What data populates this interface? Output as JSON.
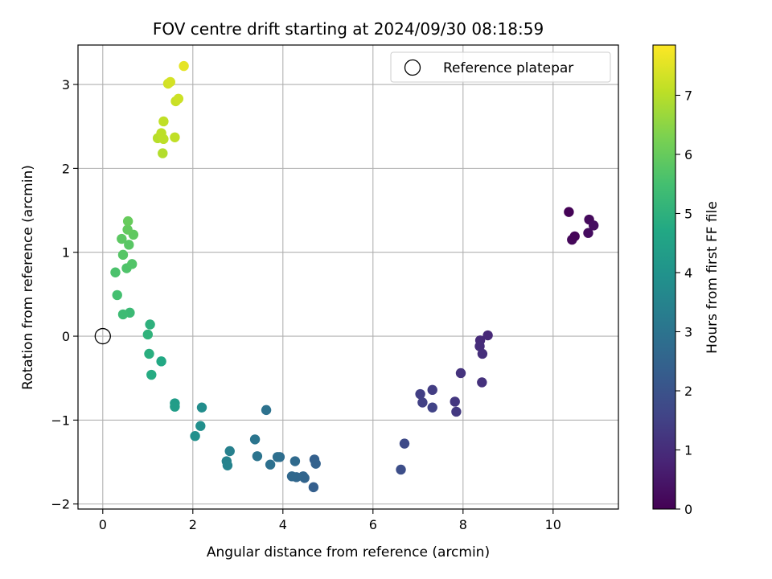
{
  "chart_data": {
    "type": "scatter",
    "title": "FOV centre drift starting at 2024/09/30 08:18:59",
    "xlabel": "Angular distance from reference (arcmin)",
    "ylabel": "Rotation from reference (arcmin)",
    "xlim": [
      -0.55,
      11.45
    ],
    "ylim": [
      -2.06,
      3.47
    ],
    "xticks": [
      0,
      2,
      4,
      6,
      8,
      10
    ],
    "yticks": [
      -2,
      -1,
      0,
      1,
      2,
      3
    ],
    "grid": true,
    "legend": {
      "placement": "upper-right",
      "entries": [
        "Reference platepar"
      ]
    },
    "reference_point": {
      "name": "Reference platepar",
      "x": 0,
      "y": 0
    },
    "colorbar": {
      "label": "Hours from first FF file",
      "colormap": "viridis",
      "range": [
        0,
        7.85
      ],
      "ticks": [
        0,
        1,
        2,
        3,
        4,
        5,
        6,
        7
      ]
    },
    "series": [
      {
        "points": [
          {
            "x": 10.35,
            "y": 1.48,
            "c": 0.05
          },
          {
            "x": 10.42,
            "y": 1.15,
            "c": 0.15
          },
          {
            "x": 10.48,
            "y": 1.19,
            "c": 0.1
          },
          {
            "x": 10.8,
            "y": 1.39,
            "c": 0.2
          },
          {
            "x": 10.78,
            "y": 1.23,
            "c": 0.25
          },
          {
            "x": 10.9,
            "y": 1.32,
            "c": 0.3
          },
          {
            "x": 8.55,
            "y": 0.01,
            "c": 0.9
          },
          {
            "x": 8.38,
            "y": -0.05,
            "c": 0.95
          },
          {
            "x": 8.37,
            "y": -0.12,
            "c": 1.0
          },
          {
            "x": 8.43,
            "y": -0.21,
            "c": 1.05
          },
          {
            "x": 8.42,
            "y": -0.55,
            "c": 1.1
          },
          {
            "x": 7.95,
            "y": -0.44,
            "c": 1.15
          },
          {
            "x": 7.82,
            "y": -0.78,
            "c": 1.25
          },
          {
            "x": 7.85,
            "y": -0.9,
            "c": 1.3
          },
          {
            "x": 7.32,
            "y": -0.64,
            "c": 1.4
          },
          {
            "x": 7.05,
            "y": -0.69,
            "c": 1.45
          },
          {
            "x": 7.1,
            "y": -0.79,
            "c": 1.5
          },
          {
            "x": 7.32,
            "y": -0.85,
            "c": 1.55
          },
          {
            "x": 6.7,
            "y": -1.28,
            "c": 1.75
          },
          {
            "x": 6.62,
            "y": -1.59,
            "c": 1.85
          },
          {
            "x": 4.68,
            "y": -1.8,
            "c": 2.35
          },
          {
            "x": 4.7,
            "y": -1.47,
            "c": 2.4
          },
          {
            "x": 4.73,
            "y": -1.52,
            "c": 2.45
          },
          {
            "x": 4.48,
            "y": -1.69,
            "c": 2.5
          },
          {
            "x": 4.45,
            "y": -1.67,
            "c": 2.55
          },
          {
            "x": 4.3,
            "y": -1.68,
            "c": 2.6
          },
          {
            "x": 4.2,
            "y": -1.67,
            "c": 2.65
          },
          {
            "x": 4.27,
            "y": -1.49,
            "c": 2.7
          },
          {
            "x": 3.93,
            "y": -1.44,
            "c": 2.8
          },
          {
            "x": 3.88,
            "y": -1.44,
            "c": 2.85
          },
          {
            "x": 3.72,
            "y": -1.53,
            "c": 2.9
          },
          {
            "x": 3.63,
            "y": -0.88,
            "c": 2.95
          },
          {
            "x": 3.43,
            "y": -1.43,
            "c": 3.0
          },
          {
            "x": 3.38,
            "y": -1.23,
            "c": 3.05
          },
          {
            "x": 2.82,
            "y": -1.37,
            "c": 3.4
          },
          {
            "x": 2.75,
            "y": -1.49,
            "c": 3.45
          },
          {
            "x": 2.77,
            "y": -1.54,
            "c": 3.5
          },
          {
            "x": 2.2,
            "y": -0.85,
            "c": 3.8
          },
          {
            "x": 2.17,
            "y": -1.07,
            "c": 3.85
          },
          {
            "x": 2.05,
            "y": -1.19,
            "c": 3.9
          },
          {
            "x": 1.6,
            "y": -0.8,
            "c": 4.3
          },
          {
            "x": 1.6,
            "y": -0.84,
            "c": 4.35
          },
          {
            "x": 1.3,
            "y": -0.3,
            "c": 4.7
          },
          {
            "x": 1.08,
            "y": -0.46,
            "c": 4.8
          },
          {
            "x": 1.03,
            "y": -0.21,
            "c": 4.9
          },
          {
            "x": 1.05,
            "y": 0.14,
            "c": 5.0
          },
          {
            "x": 1.0,
            "y": 0.02,
            "c": 5.05
          },
          {
            "x": 0.6,
            "y": 0.28,
            "c": 5.3
          },
          {
            "x": 0.45,
            "y": 0.26,
            "c": 5.35
          },
          {
            "x": 0.32,
            "y": 0.49,
            "c": 5.5
          },
          {
            "x": 0.28,
            "y": 0.76,
            "c": 5.6
          },
          {
            "x": 0.53,
            "y": 0.81,
            "c": 5.65
          },
          {
            "x": 0.65,
            "y": 0.86,
            "c": 5.7
          },
          {
            "x": 0.45,
            "y": 0.97,
            "c": 5.75
          },
          {
            "x": 0.58,
            "y": 1.09,
            "c": 5.8
          },
          {
            "x": 0.42,
            "y": 1.16,
            "c": 5.85
          },
          {
            "x": 0.68,
            "y": 1.21,
            "c": 5.9
          },
          {
            "x": 0.55,
            "y": 1.27,
            "c": 5.95
          },
          {
            "x": 0.56,
            "y": 1.37,
            "c": 6.0
          },
          {
            "x": 1.33,
            "y": 2.18,
            "c": 6.95
          },
          {
            "x": 1.22,
            "y": 2.36,
            "c": 7.0
          },
          {
            "x": 1.3,
            "y": 2.42,
            "c": 7.05
          },
          {
            "x": 1.35,
            "y": 2.35,
            "c": 7.05
          },
          {
            "x": 1.6,
            "y": 2.37,
            "c": 7.1
          },
          {
            "x": 1.35,
            "y": 2.56,
            "c": 7.1
          },
          {
            "x": 1.62,
            "y": 2.8,
            "c": 7.2
          },
          {
            "x": 1.68,
            "y": 2.83,
            "c": 7.25
          },
          {
            "x": 1.45,
            "y": 3.01,
            "c": 7.3
          },
          {
            "x": 1.5,
            "y": 3.03,
            "c": 7.35
          },
          {
            "x": 1.8,
            "y": 3.22,
            "c": 7.55
          }
        ]
      }
    ]
  },
  "colors": {
    "grid": "#b0b0b0",
    "reference_marker": "#000000",
    "legend_border": "#cccccc"
  }
}
